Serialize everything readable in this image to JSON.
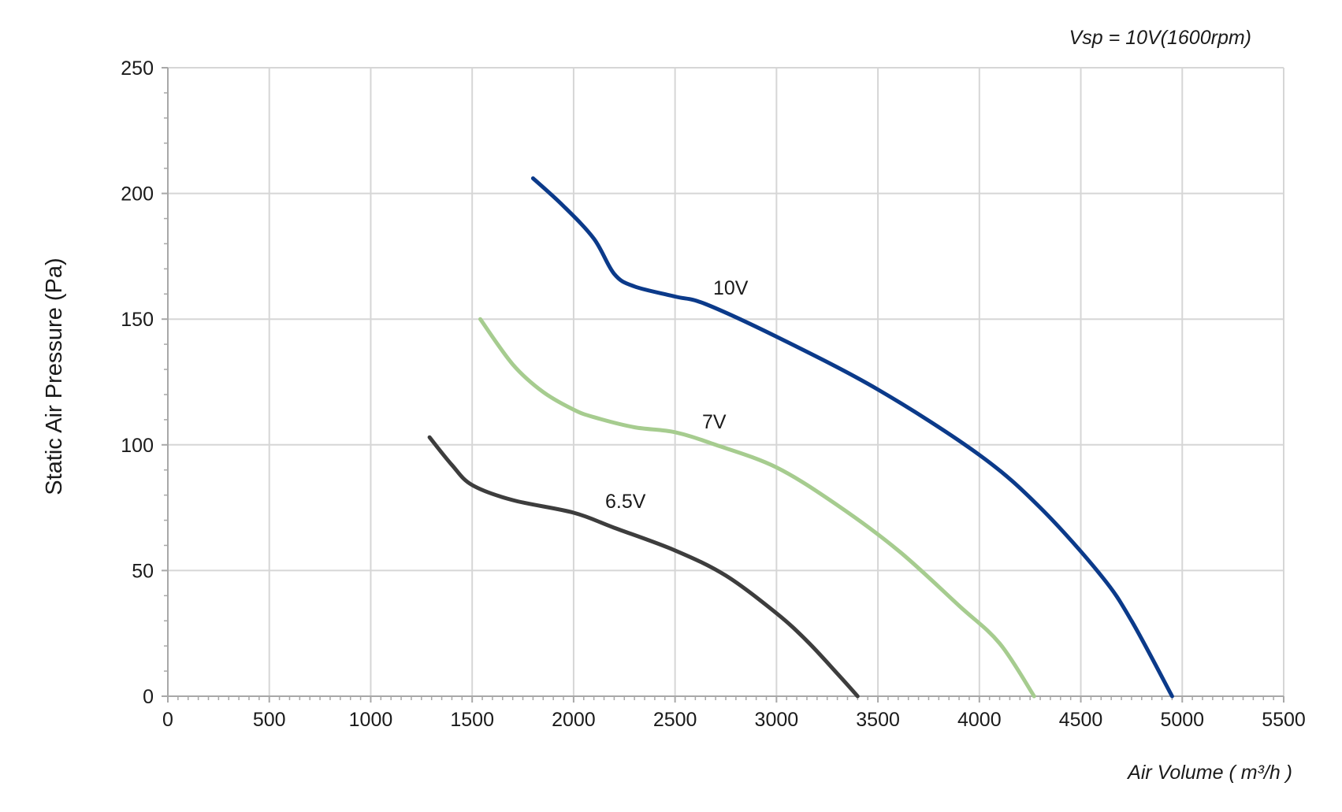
{
  "chart_data": {
    "type": "line",
    "title": "",
    "annotation": "Vsp = 10V(1600rpm)",
    "xlabel": "Air Volume ( m³/h )",
    "ylabel": "Static Air Pressure  (Pa)",
    "xlim": [
      0,
      5500
    ],
    "ylim": [
      0,
      250
    ],
    "x_ticks": [
      "0",
      "500",
      "1000",
      "1500",
      "2000",
      "2500",
      "3000",
      "3500",
      "4000",
      "4500",
      "5000",
      "5500"
    ],
    "y_ticks": [
      "0",
      "50",
      "100",
      "150",
      "200",
      "250"
    ],
    "grid": true,
    "series": [
      {
        "name": "10V",
        "color": "#0b3a8a",
        "points": [
          [
            1800,
            206
          ],
          [
            1950,
            195
          ],
          [
            2100,
            182
          ],
          [
            2200,
            168
          ],
          [
            2300,
            163
          ],
          [
            2500,
            159
          ],
          [
            2650,
            156
          ],
          [
            3000,
            143
          ],
          [
            3500,
            122
          ],
          [
            4000,
            96
          ],
          [
            4300,
            75
          ],
          [
            4600,
            48
          ],
          [
            4750,
            30
          ],
          [
            4950,
            0
          ]
        ]
      },
      {
        "name": "7V",
        "color": "#a6cc8f",
        "points": [
          [
            1540,
            150
          ],
          [
            1700,
            132
          ],
          [
            1850,
            121
          ],
          [
            2000,
            114
          ],
          [
            2100,
            111
          ],
          [
            2300,
            107
          ],
          [
            2500,
            105
          ],
          [
            2700,
            100
          ],
          [
            3000,
            91
          ],
          [
            3300,
            76
          ],
          [
            3600,
            58
          ],
          [
            3900,
            36
          ],
          [
            4100,
            21
          ],
          [
            4270,
            0
          ]
        ]
      },
      {
        "name": "6.5V",
        "color": "#3d3d3d",
        "points": [
          [
            1290,
            103
          ],
          [
            1400,
            92
          ],
          [
            1500,
            84
          ],
          [
            1700,
            78
          ],
          [
            2000,
            73
          ],
          [
            2200,
            67
          ],
          [
            2500,
            58
          ],
          [
            2750,
            48
          ],
          [
            3000,
            33
          ],
          [
            3150,
            22
          ],
          [
            3300,
            9
          ],
          [
            3400,
            0
          ]
        ]
      }
    ]
  }
}
